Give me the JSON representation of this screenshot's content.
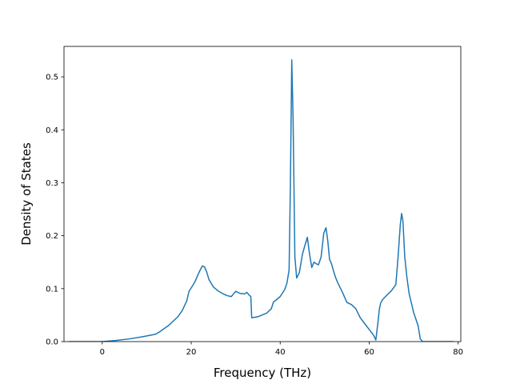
{
  "chart_data": {
    "type": "line",
    "title": "",
    "xlabel": "Frequency (THz)",
    "ylabel": "Density of States",
    "xlim": [
      -8.6,
      80.6
    ],
    "ylim": [
      0.0,
      0.5575
    ],
    "xticks": [
      0,
      20,
      40,
      60,
      80
    ],
    "yticks": [
      0.0,
      0.1,
      0.2,
      0.3,
      0.4,
      0.5
    ],
    "xtick_labels": [
      "0",
      "20",
      "40",
      "60",
      "80"
    ],
    "ytick_labels": [
      "0.0",
      "0.1",
      "0.2",
      "0.3",
      "0.4",
      "0.5"
    ],
    "grid": false,
    "legend": "none",
    "line_color": "#1f77b4",
    "series": [
      {
        "x": [
          -7.5,
          0,
          3,
          6,
          9,
          12,
          13,
          15,
          17,
          18,
          19,
          19.5,
          20.5,
          21,
          21.5,
          22,
          22.5,
          23,
          23.5,
          24,
          25,
          26,
          27,
          28,
          29,
          29.5,
          30,
          31,
          32,
          32.5,
          33,
          33.4,
          33.6,
          35,
          37,
          38,
          38.5,
          39,
          40,
          41,
          41.5,
          42,
          42.3,
          42.6,
          42.9,
          43.3,
          43.7,
          44.3,
          45,
          45.5,
          46.1,
          46.6,
          47.1,
          47.6,
          48.1,
          48.6,
          49.2,
          49.8,
          50.3,
          50.7,
          51.1,
          51.5,
          52,
          52.5,
          53,
          54,
          55,
          56,
          57,
          58,
          59,
          60,
          61,
          61.5,
          62,
          62.3,
          62.6,
          63,
          64,
          65,
          66,
          66.5,
          67,
          67.3,
          67.6,
          68,
          68.5,
          69,
          70,
          71,
          71.5,
          72,
          75,
          79
        ],
        "y": [
          0,
          0,
          0.002,
          0.005,
          0.009,
          0.014,
          0.019,
          0.031,
          0.047,
          0.059,
          0.077,
          0.095,
          0.108,
          0.116,
          0.126,
          0.135,
          0.143,
          0.141,
          0.131,
          0.117,
          0.103,
          0.096,
          0.091,
          0.087,
          0.085,
          0.09,
          0.095,
          0.091,
          0.09,
          0.093,
          0.088,
          0.085,
          0.045,
          0.047,
          0.054,
          0.062,
          0.075,
          0.078,
          0.085,
          0.098,
          0.11,
          0.135,
          0.3,
          0.532,
          0.42,
          0.16,
          0.12,
          0.13,
          0.165,
          0.18,
          0.197,
          0.165,
          0.14,
          0.15,
          0.147,
          0.145,
          0.16,
          0.205,
          0.215,
          0.19,
          0.155,
          0.148,
          0.133,
          0.12,
          0.11,
          0.093,
          0.074,
          0.07,
          0.062,
          0.045,
          0.034,
          0.023,
          0.012,
          0.003,
          0.038,
          0.062,
          0.073,
          0.079,
          0.088,
          0.096,
          0.108,
          0.16,
          0.221,
          0.242,
          0.227,
          0.16,
          0.12,
          0.09,
          0.055,
          0.03,
          0.005,
          0,
          0,
          0
        ]
      }
    ]
  }
}
